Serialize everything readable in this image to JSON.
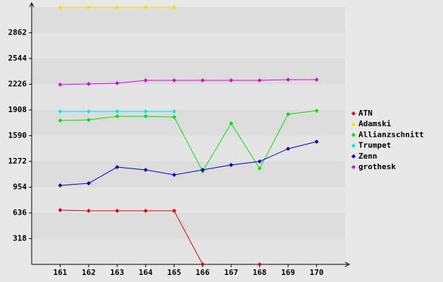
{
  "chart_data": {
    "type": "line",
    "categories": [
      "161",
      "162",
      "163",
      "164",
      "165",
      "166",
      "167",
      "168",
      "169",
      "170"
    ],
    "series": [
      {
        "name": "ATN",
        "color": "#e00000",
        "values": [
          671,
          662,
          662,
          662,
          662,
          0,
          null,
          0,
          null,
          null
        ]
      },
      {
        "name": "Adamski",
        "color": "#e8e800",
        "values": [
          3180,
          3180,
          3180,
          3180,
          3180,
          null,
          null,
          null,
          null,
          null
        ]
      },
      {
        "name": "Allianzschnitt",
        "color": "#00e000",
        "values": [
          1777,
          1786,
          1830,
          1830,
          1821,
          1150,
          1742,
          1185,
          1856,
          1899
        ]
      },
      {
        "name": "Trumpet",
        "color": "#00e8e8",
        "values": [
          1891,
          1891,
          1891,
          1891,
          1891,
          null,
          null,
          null,
          null,
          null
        ]
      },
      {
        "name": "Zenn",
        "color": "#0000d0",
        "values": [
          976,
          1002,
          1202,
          1167,
          1106,
          1167,
          1228,
          1272,
          1429,
          1516
        ]
      },
      {
        "name": "grothesk",
        "color": "#e000e0",
        "values": [
          2222,
          2230,
          2239,
          2274,
          2274,
          2274,
          2274,
          2274,
          2283,
          2283
        ]
      }
    ],
    "ylim": [
      0,
      3180
    ],
    "yticks": [
      318,
      636,
      954,
      1272,
      1590,
      1908,
      2226,
      2544,
      2862
    ],
    "grid": true,
    "legend": "right"
  }
}
